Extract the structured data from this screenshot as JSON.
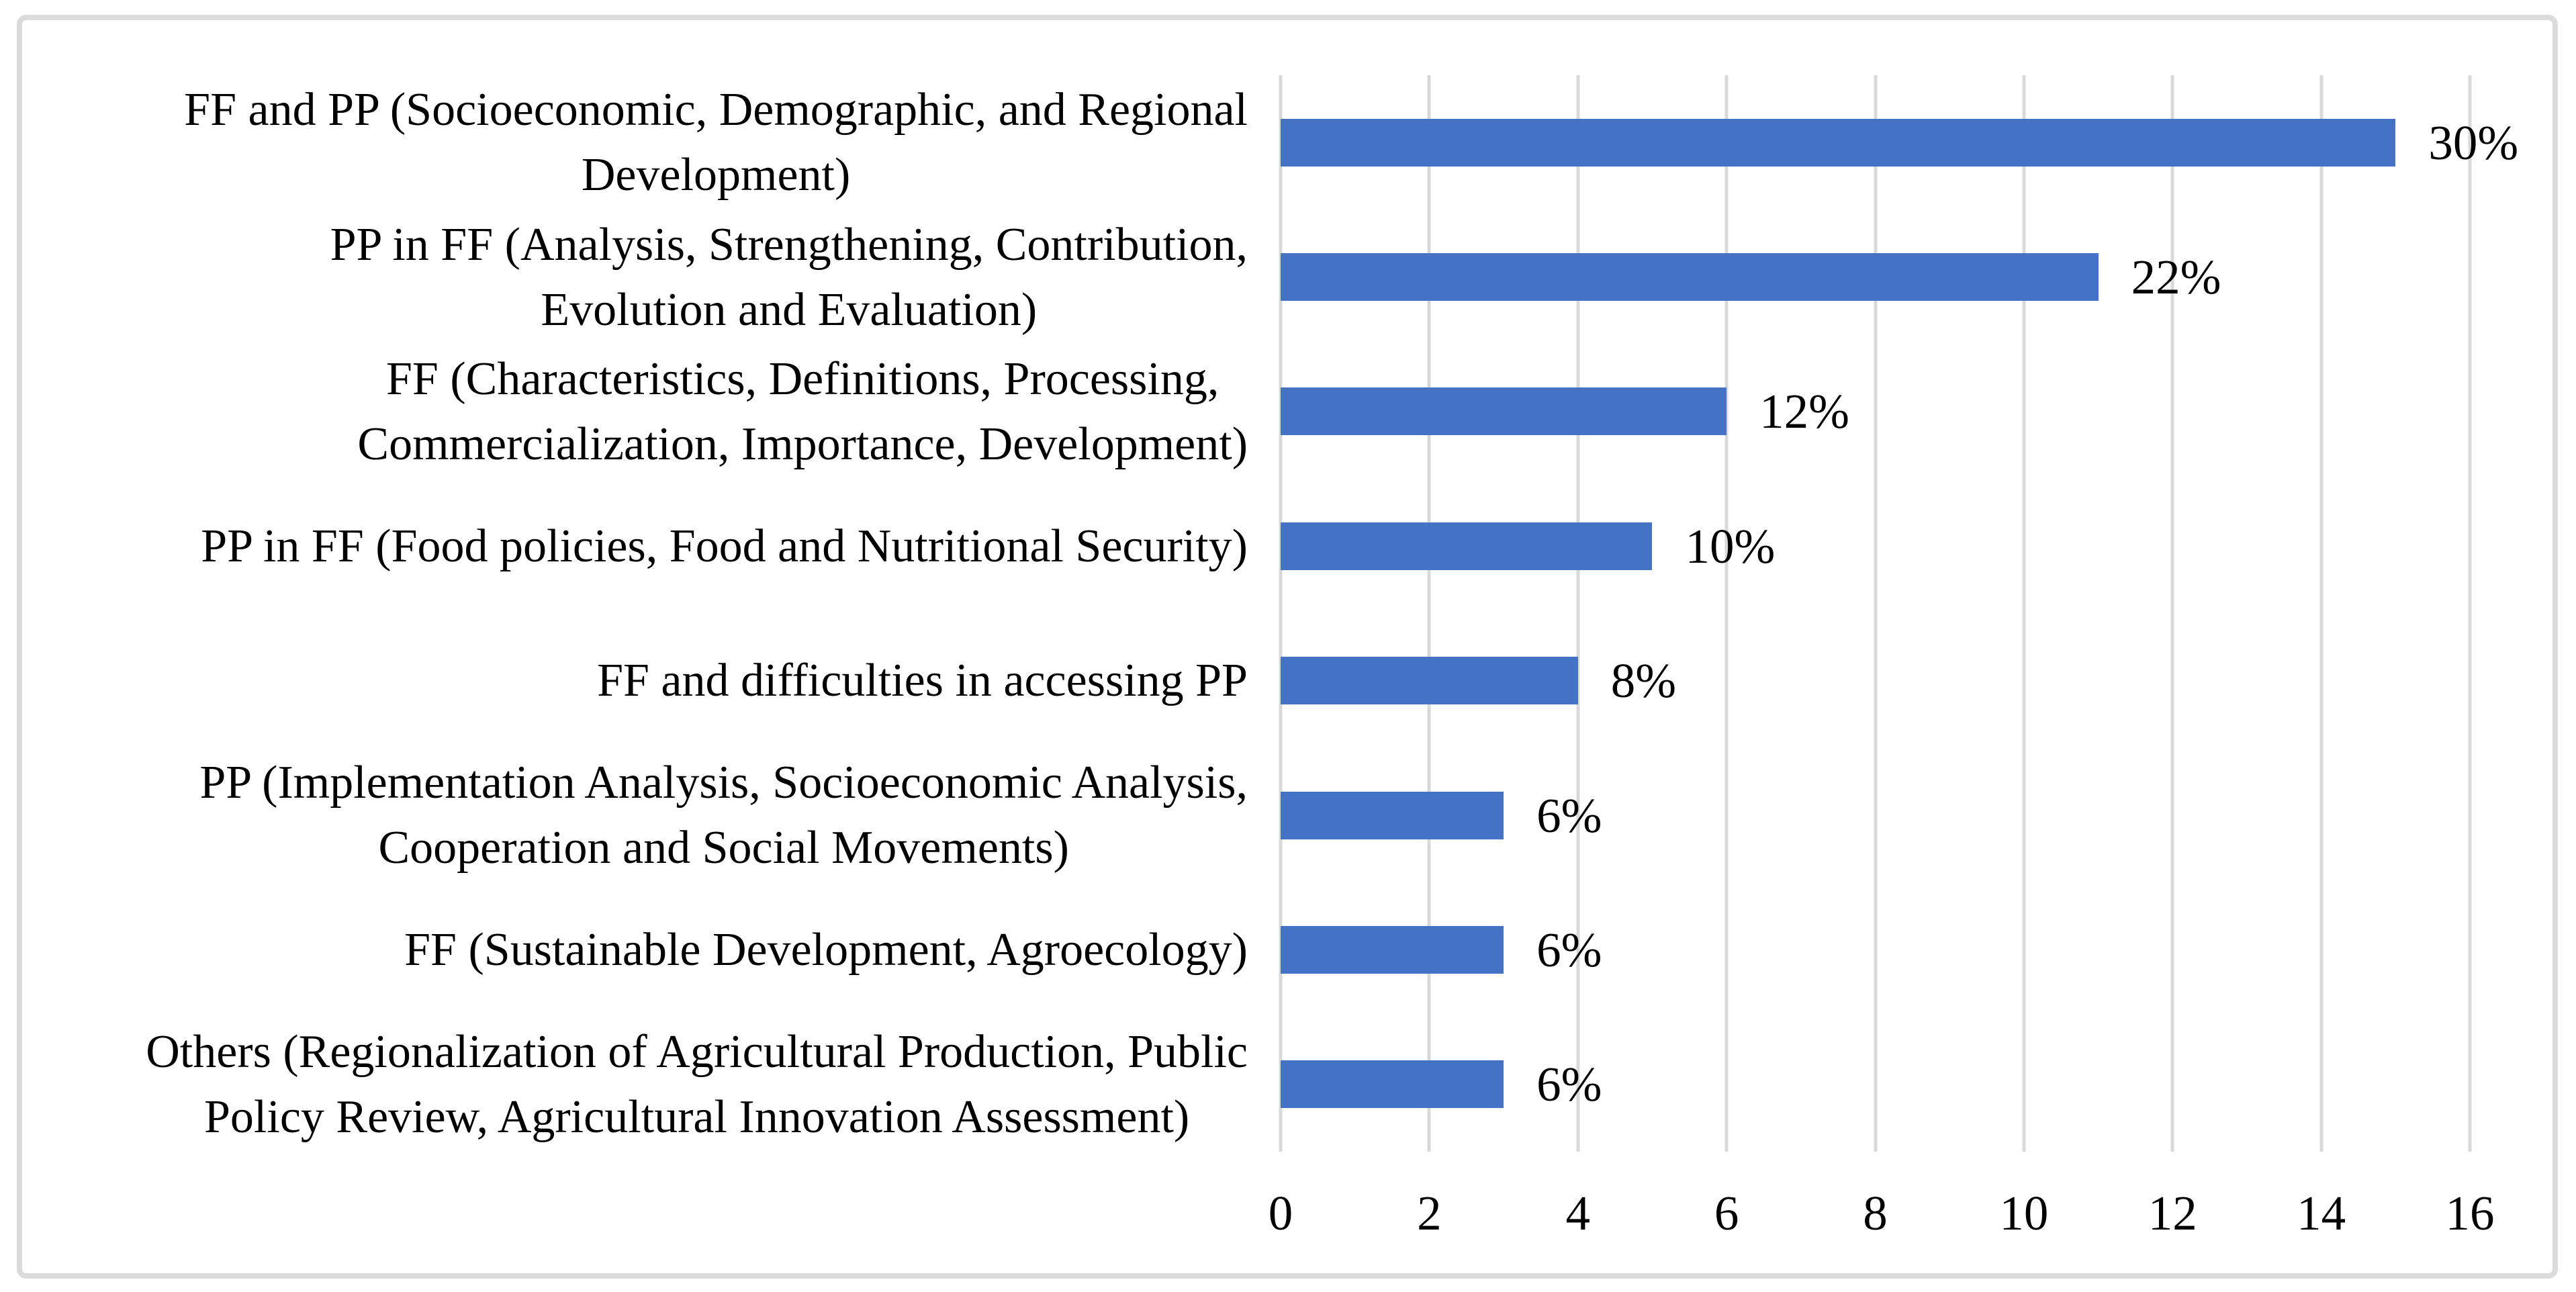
{
  "chart_data": {
    "type": "bar",
    "orientation": "horizontal",
    "title": "",
    "xlabel": "",
    "ylabel": "",
    "categories": [
      "FF and PP (Socioeconomic, Demographic, and Regional\nDevelopment)",
      "PP in FF (Analysis, Strengthening, Contribution,\nEvolution and Evaluation)",
      "FF (Characteristics, Definitions, Processing,\nCommercialization, Importance, Development)",
      "PP in FF (Food policies, Food and Nutritional Security)",
      "FF and difficulties in accessing PP",
      "PP (Implementation Analysis, Socioeconomic Analysis,\nCooperation and Social Movements)",
      "FF (Sustainable Development, Agroecology)",
      "Others (Regionalization of Agricultural Production, Public\nPolicy Review, Agricultural Innovation Assessment)"
    ],
    "values": [
      15,
      11,
      6,
      5,
      4,
      3,
      3,
      3
    ],
    "data_labels": [
      "30%",
      "22%",
      "12%",
      "10%",
      "8%",
      "6%",
      "6%",
      "6%"
    ],
    "xlim": [
      0,
      16
    ],
    "x_ticks": [
      0,
      2,
      4,
      6,
      8,
      10,
      12,
      14,
      16
    ],
    "grid": "vertical-only",
    "legend": "none",
    "colors": {
      "bar": "#4472c4",
      "gridline": "#d9d9d9",
      "frame_border": "#dbdbdb",
      "text": "#000000",
      "background": "#ffffff"
    }
  }
}
